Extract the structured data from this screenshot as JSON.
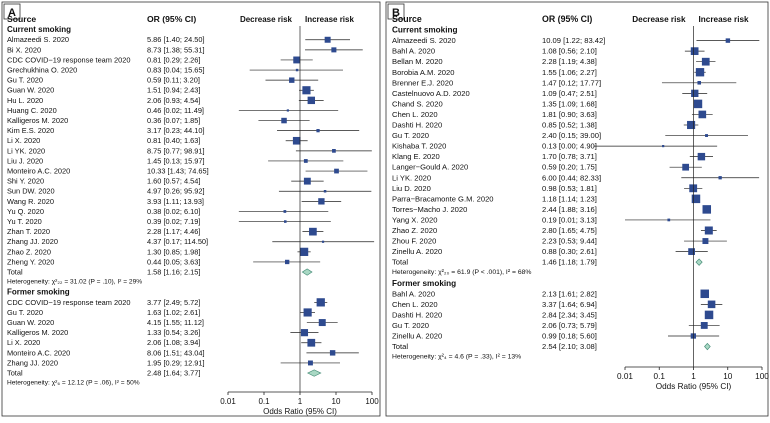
{
  "chart_data": [
    {
      "type": "forest",
      "panel_label": "A",
      "columns": {
        "source": "Source",
        "or": "OR (95% CI)"
      },
      "direction_labels": {
        "left": "Decrease risk",
        "right": "Increase risk"
      },
      "xlabel": "Odds Ratio (95% CI)",
      "xscale": "log",
      "xlim": [
        0.01,
        100
      ],
      "xticks": [
        0.01,
        0.1,
        1,
        10,
        100
      ],
      "xtick_labels": [
        "0.01",
        "0.1",
        "1",
        "10",
        "100"
      ],
      "groups": [
        {
          "name": "Current smoking",
          "studies": [
            {
              "source": "Almazeedi S. 2020",
              "or": 5.86,
              "lo": 1.4,
              "hi": 24.5,
              "label": "5.86 [1.40; 24.50]"
            },
            {
              "source": "Bi X. 2020",
              "or": 8.73,
              "lo": 1.38,
              "hi": 55.31,
              "label": "8.73 [1.38; 55.31]"
            },
            {
              "source": "CDC COVID−19 response team 2020",
              "or": 0.81,
              "lo": 0.29,
              "hi": 2.26,
              "label": "0.81 [0.29;  2.26]"
            },
            {
              "source": "Grechukhina O. 2020",
              "or": 0.83,
              "lo": 0.04,
              "hi": 15.65,
              "label": "0.83 [0.04; 15.65]"
            },
            {
              "source": "Gu T. 2020",
              "or": 0.59,
              "lo": 0.11,
              "hi": 3.2,
              "label": "0.59 [0.11;  3.20]"
            },
            {
              "source": "Guan W. 2020",
              "or": 1.51,
              "lo": 0.94,
              "hi": 2.43,
              "label": "1.51 [0.94;  2.43]"
            },
            {
              "source": "Hu L. 2020",
              "or": 2.06,
              "lo": 0.93,
              "hi": 4.54,
              "label": "2.06 [0.93;  4.54]"
            },
            {
              "source": "Huang C. 2020",
              "or": 0.46,
              "lo": 0.02,
              "hi": 11.49,
              "label": "0.46 [0.02; 11.49]"
            },
            {
              "source": "Kalligeros M. 2020",
              "or": 0.36,
              "lo": 0.07,
              "hi": 1.85,
              "label": "0.36 [0.07;  1.85]"
            },
            {
              "source": "Kim E.S. 2020",
              "or": 3.17,
              "lo": 0.23,
              "hi": 44.1,
              "label": "3.17 [0.23; 44.10]"
            },
            {
              "source": "Li X. 2020",
              "or": 0.81,
              "lo": 0.4,
              "hi": 1.63,
              "label": "0.81 [0.40;  1.63]"
            },
            {
              "source": "Li YK. 2020",
              "or": 8.75,
              "lo": 0.77,
              "hi": 98.91,
              "label": "8.75 [0.77; 98.91]"
            },
            {
              "source": "Liu J. 2020",
              "or": 1.45,
              "lo": 0.13,
              "hi": 15.97,
              "label": "1.45 [0.13; 15.97]"
            },
            {
              "source": "Monteiro A.C. 2020",
              "or": 10.33,
              "lo": 1.43,
              "hi": 74.65,
              "label": "10.33 [1.43;  74.65]"
            },
            {
              "source": "Shi Y. 2020",
              "or": 1.6,
              "lo": 0.57,
              "hi": 4.54,
              "label": "1.60 [0.57;  4.54]"
            },
            {
              "source": "Sun DW. 2020",
              "or": 4.97,
              "lo": 0.26,
              "hi": 95.92,
              "label": "4.97 [0.26; 95.92]"
            },
            {
              "source": "Wang R. 2020",
              "or": 3.93,
              "lo": 1.11,
              "hi": 13.93,
              "label": "3.93 [1.11; 13.93]"
            },
            {
              "source": "Yu Q. 2020",
              "or": 0.38,
              "lo": 0.02,
              "hi": 6.1,
              "label": "0.38 [0.02;  6.10]"
            },
            {
              "source": "Yu T. 2020",
              "or": 0.39,
              "lo": 0.02,
              "hi": 7.19,
              "label": "0.39 [0.02;  7.19]"
            },
            {
              "source": "Zhan T. 2020",
              "or": 2.28,
              "lo": 1.17,
              "hi": 4.46,
              "label": "2.28 [1.17;  4.46]"
            },
            {
              "source": "Zhang JJ. 2020",
              "or": 4.37,
              "lo": 0.17,
              "hi": 114.5,
              "label": "4.37 [0.17; 114.50]"
            },
            {
              "source": "Zhao Z. 2020",
              "or": 1.3,
              "lo": 0.85,
              "hi": 1.98,
              "label": "1.30 [0.85;  1.98]"
            },
            {
              "source": "Zheng Y. 2020",
              "or": 0.44,
              "lo": 0.05,
              "hi": 3.63,
              "label": "0.44 [0.05;  3.63]"
            }
          ],
          "total": {
            "source": "Total",
            "or": 1.58,
            "lo": 1.16,
            "hi": 2.15,
            "label": "1.58 [1.16;  2.15]"
          },
          "heterogeneity": "Heterogeneity: χ²₂₂ = 31.02 (P = .10), I² = 29%"
        },
        {
          "name": "Former smoking",
          "studies": [
            {
              "source": "CDC COVID−19 response team 2020",
              "or": 3.77,
              "lo": 2.49,
              "hi": 5.72,
              "label": "3.77 [2.49;  5.72]"
            },
            {
              "source": "Gu T. 2020",
              "or": 1.63,
              "lo": 1.02,
              "hi": 2.61,
              "label": "1.63 [1.02;  2.61]"
            },
            {
              "source": "Guan W. 2020",
              "or": 4.15,
              "lo": 1.55,
              "hi": 11.12,
              "label": "4.15 [1.55; 11.12]"
            },
            {
              "source": "Kalligeros M. 2020",
              "or": 1.33,
              "lo": 0.54,
              "hi": 3.26,
              "label": "1.33 [0.54;  3.26]"
            },
            {
              "source": "Li X. 2020",
              "or": 2.06,
              "lo": 1.08,
              "hi": 3.94,
              "label": "2.06 [1.08;  3.94]"
            },
            {
              "source": "Monteiro A.C. 2020",
              "or": 8.06,
              "lo": 1.51,
              "hi": 43.04,
              "label": "8.06 [1.51; 43.04]"
            },
            {
              "source": "Zhang JJ. 2020",
              "or": 1.95,
              "lo": 0.29,
              "hi": 12.91,
              "label": "1.95 [0.29; 12.91]"
            }
          ],
          "total": {
            "source": "Total",
            "or": 2.48,
            "lo": 1.64,
            "hi": 3.77,
            "label": "2.48 [1.64;  3.77]"
          },
          "heterogeneity": "Heterogeneity: χ²₆ = 12.12 (P = .06), I² = 50%"
        }
      ]
    },
    {
      "type": "forest",
      "panel_label": "B",
      "columns": {
        "source": "Source",
        "or": "OR (95% CI)"
      },
      "direction_labels": {
        "left": "Decrease risk",
        "right": "Increase risk"
      },
      "xlabel": "Odds Ratio (95% CI)",
      "xscale": "log",
      "xlim": [
        0.01,
        100
      ],
      "xticks": [
        0.01,
        0.1,
        1,
        10,
        100
      ],
      "xtick_labels": [
        "0.01",
        "0.1",
        "1",
        "10",
        "100"
      ],
      "groups": [
        {
          "name": "Current smoking",
          "studies": [
            {
              "source": "Almazeedi S. 2020",
              "or": 10.09,
              "lo": 1.22,
              "hi": 83.42,
              "label": "10.09 [1.22; 83.42]"
            },
            {
              "source": "Bahl A. 2020",
              "or": 1.08,
              "lo": 0.56,
              "hi": 2.1,
              "label": "1.08 [0.56;  2.10]"
            },
            {
              "source": "Bellan M. 2020",
              "or": 2.28,
              "lo": 1.19,
              "hi": 4.38,
              "label": "2.28 [1.19;  4.38]"
            },
            {
              "source": "Borobia A.M. 2020",
              "or": 1.55,
              "lo": 1.06,
              "hi": 2.27,
              "label": "1.55 [1.06;  2.27]"
            },
            {
              "source": "Brenner E.J. 2020",
              "or": 1.47,
              "lo": 0.12,
              "hi": 17.77,
              "label": "1.47 [0.12; 17.77]"
            },
            {
              "source": "Castelnuovo A.D. 2020",
              "or": 1.09,
              "lo": 0.47,
              "hi": 2.51,
              "label": "1.09 [0.47;  2.51]"
            },
            {
              "source": "Chand S. 2020",
              "or": 1.35,
              "lo": 1.09,
              "hi": 1.68,
              "label": "1.35 [1.09;  1.68]"
            },
            {
              "source": "Chen L. 2020",
              "or": 1.81,
              "lo": 0.9,
              "hi": 3.63,
              "label": "1.81 [0.90;  3.63]"
            },
            {
              "source": "Dashti H. 2020",
              "or": 0.85,
              "lo": 0.52,
              "hi": 1.38,
              "label": "0.85 [0.52;  1.38]"
            },
            {
              "source": "Gu T. 2020",
              "or": 2.4,
              "lo": 0.15,
              "hi": 39.0,
              "label": "2.40 [0.15; 39.00]"
            },
            {
              "source": "Kishaba T. 2020",
              "or": 0.13,
              "lo": 0.0,
              "hi": 4.9,
              "label": "0.13 [0.00;  4.90]"
            },
            {
              "source": "Klang E. 2020",
              "or": 1.7,
              "lo": 0.78,
              "hi": 3.71,
              "label": "1.70 [0.78;  3.71]"
            },
            {
              "source": "Langer−Gould A. 2020",
              "or": 0.59,
              "lo": 0.2,
              "hi": 1.75,
              "label": "0.59 [0.20;  1.75]"
            },
            {
              "source": "Li YK. 2020",
              "or": 6.0,
              "lo": 0.44,
              "hi": 82.33,
              "label": "6.00 [0.44; 82.33]"
            },
            {
              "source": "Liu D. 2020",
              "or": 0.98,
              "lo": 0.53,
              "hi": 1.81,
              "label": "0.98 [0.53;  1.81]"
            },
            {
              "source": "Parra−Bracamonte G.M. 2020",
              "or": 1.18,
              "lo": 1.14,
              "hi": 1.23,
              "label": "1.18 [1.14;  1.23]"
            },
            {
              "source": "Torres−Macho J. 2020",
              "or": 2.44,
              "lo": 1.88,
              "hi": 3.16,
              "label": "2.44 [1.88;  3.16]"
            },
            {
              "source": "Yang X. 2020",
              "or": 0.19,
              "lo": 0.01,
              "hi": 3.13,
              "label": "0.19 [0.01;  3.13]"
            },
            {
              "source": "Zhao Z. 2020",
              "or": 2.8,
              "lo": 1.65,
              "hi": 4.75,
              "label": "2.80 [1.65;  4.75]"
            },
            {
              "source": "Zhou F. 2020",
              "or": 2.23,
              "lo": 0.53,
              "hi": 9.44,
              "label": "2.23 [0.53;  9.44]"
            },
            {
              "source": "Zinellu A. 2020",
              "or": 0.88,
              "lo": 0.3,
              "hi": 2.61,
              "label": "0.88 [0.30;  2.61]"
            }
          ],
          "total": {
            "source": "Total",
            "or": 1.46,
            "lo": 1.18,
            "hi": 1.79,
            "label": "1.46 [1.18;  1.79]"
          },
          "heterogeneity": "Heterogeneity: χ²₂₀ = 61.9 (P < .001), I² = 68%"
        },
        {
          "name": "Former smoking",
          "studies": [
            {
              "source": "Bahl A. 2020",
              "or": 2.13,
              "lo": 1.61,
              "hi": 2.82,
              "label": "2.13 [1.61;  2.82]"
            },
            {
              "source": "Chen L. 2020",
              "or": 3.37,
              "lo": 1.64,
              "hi": 6.94,
              "label": "3.37 [1.64;  6.94]"
            },
            {
              "source": "Dashti H. 2020",
              "or": 2.84,
              "lo": 2.34,
              "hi": 3.45,
              "label": "2.84 [2.34;  3.45]"
            },
            {
              "source": "Gu T. 2020",
              "or": 2.06,
              "lo": 0.73,
              "hi": 5.79,
              "label": "2.06 [0.73;  5.79]"
            },
            {
              "source": "Zinellu A. 2020",
              "or": 0.99,
              "lo": 0.18,
              "hi": 5.6,
              "label": "0.99 [0.18;  5.60]"
            }
          ],
          "total": {
            "source": "Total",
            "or": 2.54,
            "lo": 2.1,
            "hi": 3.08,
            "label": "2.54 [2.10;  3.08]"
          },
          "heterogeneity": "Heterogeneity: χ²₄ = 4.6 (P = .33), I² = 13%"
        }
      ]
    }
  ],
  "colors": {
    "square": "#2e4a8f",
    "diamond_fill": "#a9d8c4",
    "diamond_stroke": "#4a8f7a",
    "line": "#222222",
    "panel_label_bg": "#ffffff"
  }
}
